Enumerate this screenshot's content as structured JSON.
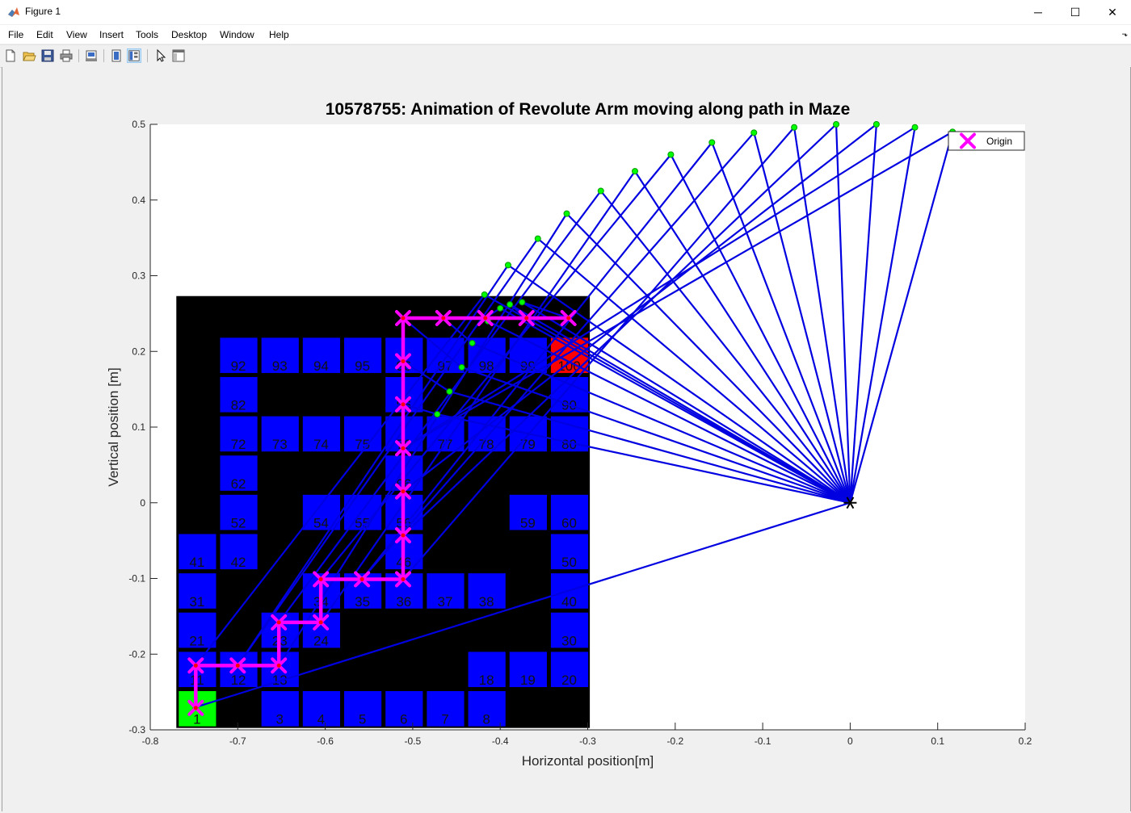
{
  "window": {
    "title": "Figure 1",
    "minimize_glyph": "─",
    "maximize_glyph": "☐",
    "close_glyph": "✕"
  },
  "menu": {
    "items": [
      "File",
      "Edit",
      "View",
      "Insert",
      "Tools",
      "Desktop",
      "Window",
      "Help"
    ],
    "overflow_glyph": "⬎"
  },
  "toolbar": {
    "icons": [
      "new-figure-icon",
      "open-file-icon",
      "save-icon",
      "print-icon",
      "print-preview-icon",
      "hide-plot-tools-icon",
      "show-plot-tools-icon",
      "edit-plot-pointer-icon",
      "dock-panel-icon"
    ],
    "active": "show-plot-tools-icon"
  },
  "chart_data": {
    "type": "line",
    "title": "10578755: Animation of Revolute Arm moving along path in Maze",
    "xlabel": "Horizontal position[m]",
    "ylabel": "Vertical position [m]",
    "xlim": [
      -0.8,
      0.2
    ],
    "ylim": [
      -0.3,
      0.5
    ],
    "xticks": [
      -0.8,
      -0.7,
      -0.6,
      -0.5,
      -0.4,
      -0.3,
      -0.2,
      -0.1,
      0,
      0.1,
      0.2
    ],
    "xtick_labels": [
      "-0.8",
      "-0.7",
      "-0.6",
      "-0.5",
      "-0.4",
      "-0.3",
      "-0.2",
      "-0.1",
      "0",
      "0.1",
      "0.2"
    ],
    "yticks": [
      -0.3,
      -0.2,
      -0.1,
      0,
      0.1,
      0.2,
      0.3,
      0.4,
      0.5
    ],
    "ytick_labels": [
      "-0.3",
      "-0.2",
      "-0.1",
      "0",
      "0.1",
      "0.2",
      "0.3",
      "0.4",
      "0.5"
    ],
    "grid": false,
    "legend": {
      "position": "top-right",
      "entries": [
        "Origin"
      ]
    },
    "colors": {
      "background": "#000000",
      "free_cell": "#0000ff",
      "start_cell": "#00ff00",
      "goal_cell": "#ff0000",
      "arm_link": "#0000e0",
      "elbow_joint": "#00ff00",
      "path": "#ff00ff",
      "waypoint_center": "#ff0000",
      "base_marker": "#000000"
    },
    "maze": {
      "x_range": [
        -0.7702,
        -0.2976
      ],
      "y_range": [
        -0.2975,
        0.2731
      ],
      "columns": 10,
      "rows": 11,
      "numbering": "cell n: column (n-1)%10, row floor((n-1)/10) from bottom",
      "free_cells": [
        1,
        3,
        4,
        5,
        6,
        7,
        8,
        11,
        12,
        13,
        18,
        19,
        20,
        21,
        23,
        24,
        30,
        31,
        34,
        35,
        36,
        37,
        38,
        40,
        41,
        42,
        46,
        50,
        52,
        54,
        55,
        56,
        59,
        60,
        62,
        66,
        72,
        73,
        74,
        75,
        76,
        77,
        78,
        79,
        80,
        82,
        86,
        90,
        92,
        93,
        94,
        95,
        96,
        97,
        98,
        99,
        100
      ],
      "start_cell": 1,
      "goal_cell": 100,
      "cell_labels": [
        "1",
        "3",
        "4",
        "5",
        "6",
        "7",
        "8",
        "11",
        "12",
        "13",
        "18",
        "19",
        "20",
        "21",
        "23",
        "24",
        "30",
        "31",
        "34",
        "35",
        "36",
        "37",
        "38",
        "40",
        "41",
        "42",
        "46",
        "50",
        "52",
        "54",
        "55",
        "56",
        "59",
        "60",
        "62",
        "66",
        "72",
        "73",
        "74",
        "75",
        "76",
        "77",
        "78",
        "79",
        "80",
        "82",
        "86",
        "90",
        "92",
        "93",
        "94",
        "95",
        "96",
        "97",
        "98",
        "99",
        "100"
      ]
    },
    "path": {
      "name": "Origin",
      "x": [
        -0.748,
        -0.748,
        -0.7,
        -0.653,
        -0.653,
        -0.605,
        -0.605,
        -0.558,
        -0.511,
        -0.511,
        -0.511,
        -0.511,
        -0.511,
        -0.511,
        -0.511,
        -0.465,
        -0.417,
        -0.37,
        -0.322
      ],
      "y": [
        -0.271,
        -0.215,
        -0.215,
        -0.215,
        -0.158,
        -0.158,
        -0.101,
        -0.101,
        -0.101,
        -0.043,
        0.015,
        0.072,
        0.13,
        0.187,
        0.244,
        0.244,
        0.244,
        0.244,
        0.244
      ]
    },
    "arm": {
      "base": [
        0,
        0
      ],
      "elbows_x": [
        -0.748,
        -0.418,
        -0.391,
        -0.357,
        -0.324,
        -0.285,
        -0.246,
        -0.205,
        -0.158,
        -0.11,
        -0.064,
        -0.016,
        0.03,
        0.074,
        0.117,
        -0.472,
        -0.458,
        -0.444,
        -0.432,
        -0.414,
        -0.4,
        -0.389,
        -0.375
      ],
      "elbows_y": [
        -0.27,
        0.275,
        0.314,
        0.349,
        0.382,
        0.412,
        0.438,
        0.46,
        0.476,
        0.489,
        0.496,
        0.5,
        0.5,
        0.496,
        0.49,
        0.117,
        0.147,
        0.179,
        0.211,
        0.24,
        0.257,
        0.262,
        0.265
      ]
    }
  }
}
